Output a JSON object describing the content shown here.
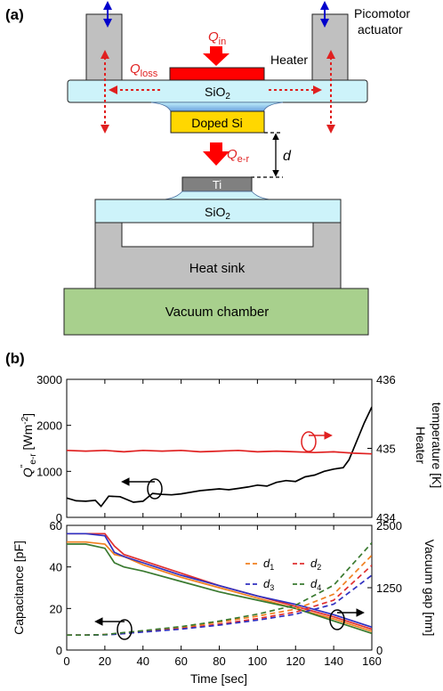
{
  "panel_a": {
    "label": "(a)",
    "picomotor_label_line1": "Picomotor",
    "picomotor_label_line2": "actuator",
    "heater_label": "Heater",
    "q_in_main": "Q",
    "q_in_sub": "in",
    "q_loss_main": "Q",
    "q_loss_sub": "loss",
    "q_er_main": "Q",
    "q_er_sub": "e-r",
    "sio2_main": "SiO",
    "sio2_sub": "2",
    "doped_si_label": "Doped Si",
    "gap_label": "d",
    "ti_label": "Ti",
    "heat_sink_label": "Heat sink",
    "vacuum_chamber_label": "Vacuum chamber",
    "colors": {
      "actuator_gray": "#c0c0c0",
      "sio2_cyan": "#cdf3fa",
      "doped_si_yellow": "#ffd700",
      "heater_red": "#ff0000",
      "ti_gray": "#808080",
      "chamber_green": "#a8d08d",
      "arrow_blue": "#0000cc"
    }
  },
  "panel_b": {
    "label": "(b)",
    "top_left_axis_label": "Q\"e-r [Wm-2]",
    "top_right_axis_line1": "Heater",
    "top_right_axis_line2": "temperature [K]",
    "bottom_left_axis_label": "Capacitance [pF]",
    "bottom_right_axis_label": "Vacuum gap [nm]",
    "x_axis_label": "Time [sec]",
    "legend": [
      "d1",
      "d2",
      "d3",
      "d4"
    ]
  },
  "chart_data": [
    {
      "type": "line",
      "xlabel": "Time [sec]",
      "ylabel": "Q\"e-r [Wm-2]",
      "y2label": "Heater temperature [K]",
      "xlim": [
        0,
        160
      ],
      "ylim": [
        0,
        3000
      ],
      "y2lim": [
        434,
        436
      ],
      "xticks": [
        0,
        20,
        40,
        60,
        80,
        100,
        120,
        140,
        160
      ],
      "yticks": [
        0,
        1000,
        2000,
        3000
      ],
      "y2ticks": [
        434,
        435,
        436
      ],
      "series": [
        {
          "axis": "left",
          "color": "#000000",
          "x": [
            0,
            5,
            10,
            15,
            18,
            22,
            28,
            35,
            40,
            45,
            50,
            55,
            60,
            70,
            80,
            85,
            90,
            95,
            100,
            105,
            110,
            115,
            120,
            125,
            130,
            135,
            140,
            145,
            148,
            150,
            153,
            156,
            160
          ],
          "y": [
            420,
            360,
            350,
            370,
            240,
            460,
            450,
            330,
            350,
            520,
            500,
            490,
            510,
            580,
            620,
            600,
            630,
            660,
            700,
            680,
            760,
            800,
            780,
            880,
            920,
            1000,
            1050,
            1080,
            1250,
            1450,
            1750,
            2050,
            2400
          ]
        },
        {
          "axis": "right",
          "color": "#e02020",
          "x": [
            0,
            10,
            20,
            30,
            40,
            50,
            60,
            70,
            80,
            90,
            100,
            110,
            120,
            130,
            140,
            150,
            160
          ],
          "y": [
            434.97,
            434.96,
            434.97,
            434.95,
            434.97,
            434.96,
            434.97,
            434.95,
            434.96,
            434.97,
            434.95,
            434.96,
            434.95,
            434.94,
            434.95,
            434.93,
            434.92
          ]
        }
      ]
    },
    {
      "type": "line",
      "xlabel": "Time [sec]",
      "ylabel": "Capacitance [pF]",
      "y2label": "Vacuum gap [nm]",
      "xlim": [
        0,
        160
      ],
      "ylim": [
        0,
        60
      ],
      "y2lim": [
        0,
        2500
      ],
      "xticks": [
        0,
        20,
        40,
        60,
        80,
        100,
        120,
        140,
        160
      ],
      "yticks": [
        0,
        20,
        40,
        60
      ],
      "y2ticks": [
        0,
        1250,
        2500
      ],
      "x": [
        0,
        10,
        20,
        25,
        30,
        40,
        60,
        80,
        100,
        120,
        140,
        160
      ],
      "series": [
        {
          "name": "d1",
          "axis": "left",
          "style": "solid",
          "color": "#f08020",
          "values": [
            52,
            52,
            51,
            46,
            45,
            41,
            35,
            30,
            25,
            20,
            15,
            9
          ]
        },
        {
          "name": "d2",
          "axis": "left",
          "style": "solid",
          "color": "#e03030",
          "values": [
            56,
            56,
            56,
            50,
            46,
            43,
            37,
            31,
            26,
            21,
            16,
            10
          ]
        },
        {
          "name": "d3",
          "axis": "left",
          "style": "solid",
          "color": "#3030c0",
          "values": [
            56,
            56,
            55,
            47,
            45,
            42,
            36,
            31,
            26,
            22,
            17,
            11
          ]
        },
        {
          "name": "d4",
          "axis": "left",
          "style": "solid",
          "color": "#3a7a30",
          "values": [
            51,
            51,
            49,
            42,
            40,
            38,
            33,
            28,
            24,
            20,
            14,
            8
          ]
        },
        {
          "name": "d1",
          "axis": "right",
          "style": "dashed",
          "color": "#f08020",
          "values": [
            300,
            300,
            310,
            320,
            340,
            380,
            450,
            560,
            680,
            820,
            1120,
            1900
          ]
        },
        {
          "name": "d2",
          "axis": "right",
          "style": "dashed",
          "color": "#e03030",
          "values": [
            300,
            300,
            310,
            320,
            330,
            370,
            430,
            520,
            630,
            760,
            1000,
            1700
          ]
        },
        {
          "name": "d3",
          "axis": "right",
          "style": "dashed",
          "color": "#3030c0",
          "values": [
            300,
            300,
            305,
            315,
            330,
            360,
            420,
            500,
            600,
            720,
            920,
            1500
          ]
        },
        {
          "name": "d4",
          "axis": "right",
          "style": "dashed",
          "color": "#3a7a30",
          "values": [
            300,
            300,
            310,
            330,
            350,
            390,
            470,
            580,
            720,
            900,
            1300,
            2150
          ]
        }
      ]
    }
  ]
}
